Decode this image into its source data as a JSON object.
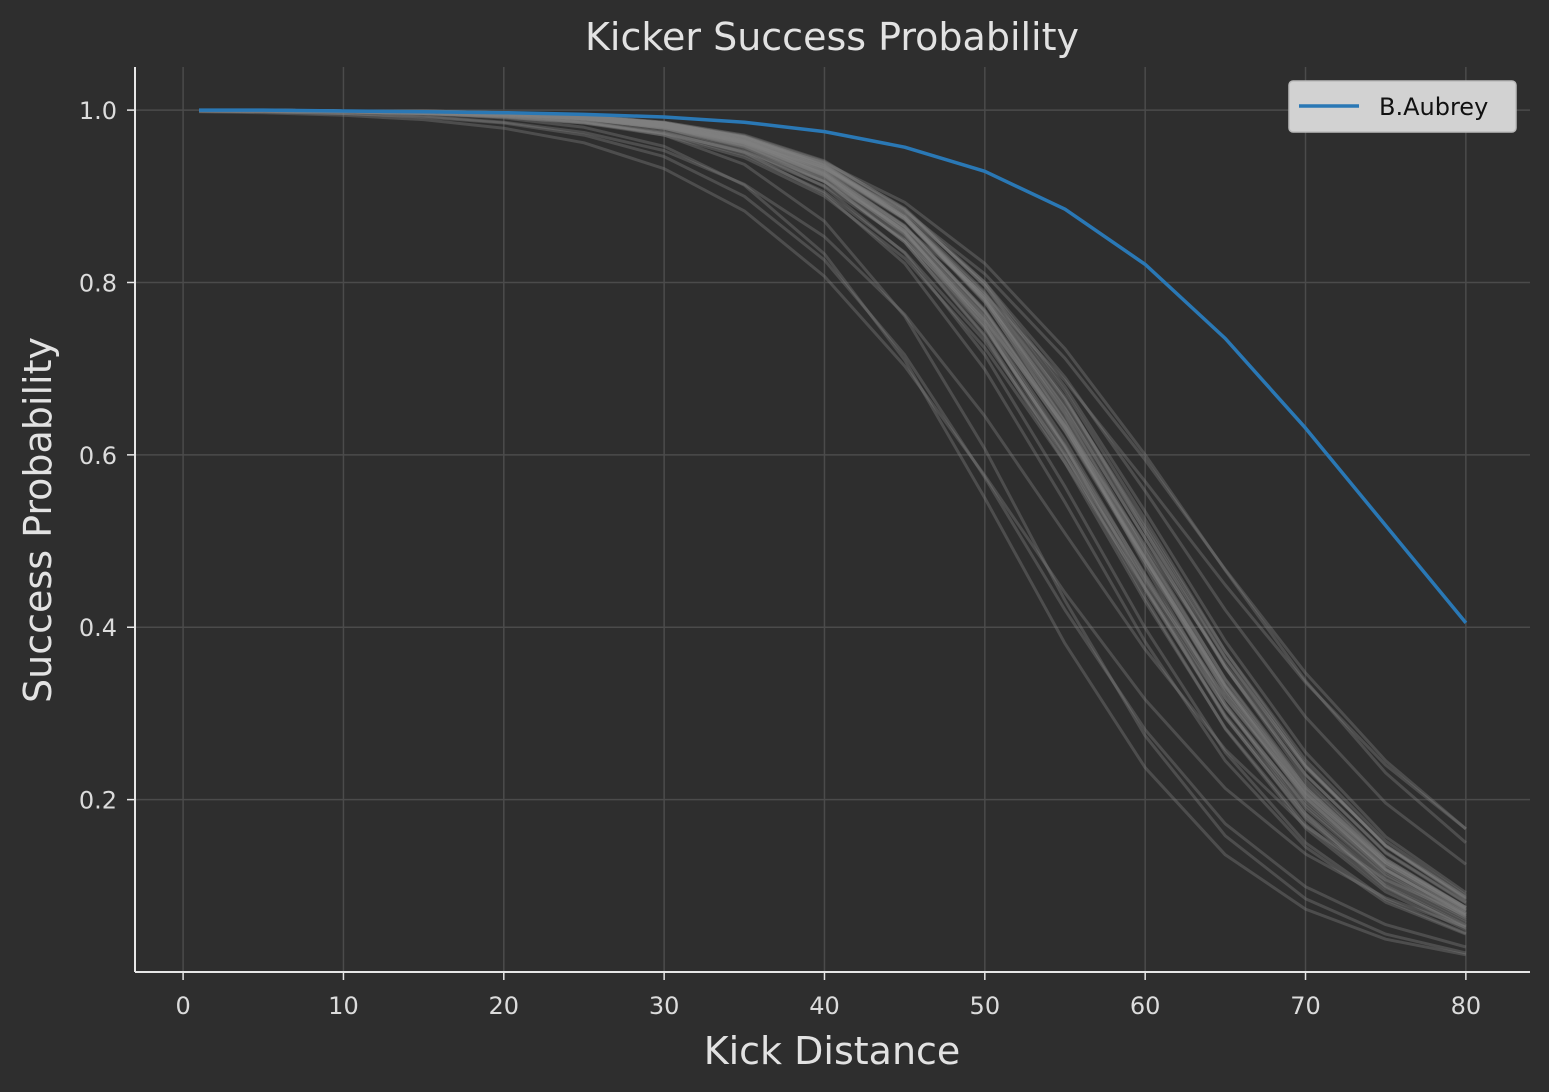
{
  "chart_data": {
    "type": "line",
    "title": "Kicker Success Probability",
    "xlabel": "Kick Distance",
    "ylabel": "Success Probability",
    "xlim": [
      -3,
      84
    ],
    "ylim": [
      0.0,
      1.05
    ],
    "xticks": [
      0,
      10,
      20,
      30,
      40,
      50,
      60,
      70,
      80
    ],
    "yticks": [
      0.2,
      0.4,
      0.6,
      0.8,
      1.0
    ],
    "xtick_labels": [
      "0",
      "10",
      "20",
      "30",
      "40",
      "50",
      "60",
      "70",
      "80"
    ],
    "ytick_labels": [
      "0.2",
      "0.4",
      "0.6",
      "0.8",
      "1.0"
    ],
    "grid": true,
    "legend_position": "top-right",
    "x": [
      1,
      5,
      10,
      15,
      20,
      25,
      30,
      35,
      40,
      45,
      50,
      55,
      60,
      65,
      70,
      75,
      80
    ],
    "highlight_series": {
      "name": "B.Aubrey",
      "color": "#2a78b5",
      "values": [
        1.0,
        1.0,
        0.999,
        0.998,
        0.997,
        0.995,
        0.992,
        0.986,
        0.975,
        0.957,
        0.929,
        0.885,
        0.821,
        0.735,
        0.631,
        0.518,
        0.405
      ]
    },
    "background_series_color": "#808080",
    "background_series": [
      {
        "values": [
          1.0,
          0.999,
          0.998,
          0.997,
          0.994,
          0.987,
          0.971,
          0.937,
          0.871,
          0.761,
          0.607,
          0.431,
          0.274,
          0.158,
          0.085,
          0.044,
          0.022
        ]
      },
      {
        "values": [
          1.0,
          0.999,
          0.998,
          0.996,
          0.991,
          0.98,
          0.958,
          0.913,
          0.833,
          0.71,
          0.55,
          0.381,
          0.237,
          0.136,
          0.073,
          0.038,
          0.02
        ]
      },
      {
        "values": [
          1.0,
          1.0,
          0.999,
          0.998,
          0.995,
          0.99,
          0.979,
          0.955,
          0.911,
          0.834,
          0.716,
          0.563,
          0.399,
          0.255,
          0.15,
          0.084,
          0.045
        ]
      },
      {
        "values": [
          1.0,
          1.0,
          0.999,
          0.998,
          0.996,
          0.992,
          0.983,
          0.963,
          0.925,
          0.859,
          0.754,
          0.61,
          0.448,
          0.296,
          0.178,
          0.1,
          0.054
        ]
      },
      {
        "values": [
          1.0,
          1.0,
          0.999,
          0.997,
          0.995,
          0.989,
          0.977,
          0.951,
          0.903,
          0.822,
          0.699,
          0.545,
          0.383,
          0.245,
          0.145,
          0.081,
          0.044
        ]
      },
      {
        "values": [
          1.0,
          1.0,
          0.999,
          0.998,
          0.996,
          0.991,
          0.981,
          0.959,
          0.918,
          0.847,
          0.737,
          0.591,
          0.43,
          0.283,
          0.171,
          0.097,
          0.053
        ]
      },
      {
        "values": [
          0.999,
          0.999,
          0.998,
          0.996,
          0.992,
          0.985,
          0.971,
          0.945,
          0.9,
          0.828,
          0.724,
          0.591,
          0.445,
          0.307,
          0.196,
          0.118,
          0.068
        ]
      },
      {
        "values": [
          0.999,
          0.999,
          0.998,
          0.996,
          0.993,
          0.986,
          0.974,
          0.951,
          0.912,
          0.849,
          0.756,
          0.634,
          0.495,
          0.357,
          0.237,
          0.147,
          0.087
        ]
      },
      {
        "values": [
          1.0,
          1.0,
          0.999,
          0.998,
          0.997,
          0.993,
          0.985,
          0.969,
          0.936,
          0.876,
          0.778,
          0.638,
          0.471,
          0.31,
          0.183,
          0.099,
          0.051
        ]
      },
      {
        "values": [
          1.0,
          1.0,
          0.999,
          0.999,
          0.997,
          0.993,
          0.984,
          0.965,
          0.927,
          0.859,
          0.75,
          0.601,
          0.434,
          0.282,
          0.167,
          0.093,
          0.049
        ]
      },
      {
        "values": [
          0.999,
          0.998,
          0.996,
          0.992,
          0.985,
          0.971,
          0.946,
          0.9,
          0.826,
          0.716,
          0.574,
          0.42,
          0.281,
          0.172,
          0.099,
          0.055,
          0.029
        ]
      },
      {
        "values": [
          0.999,
          0.998,
          0.996,
          0.993,
          0.986,
          0.974,
          0.953,
          0.914,
          0.853,
          0.763,
          0.645,
          0.509,
          0.374,
          0.258,
          0.169,
          0.107,
          0.066
        ]
      },
      {
        "values": [
          0.998,
          0.997,
          0.994,
          0.989,
          0.979,
          0.962,
          0.932,
          0.883,
          0.807,
          0.703,
          0.576,
          0.44,
          0.316,
          0.213,
          0.137,
          0.086,
          0.052
        ]
      },
      {
        "values": [
          1.0,
          0.999,
          0.999,
          0.997,
          0.995,
          0.99,
          0.981,
          0.964,
          0.933,
          0.881,
          0.8,
          0.69,
          0.558,
          0.42,
          0.296,
          0.196,
          0.125
        ]
      },
      {
        "values": [
          0.999,
          0.999,
          0.998,
          0.997,
          0.994,
          0.989,
          0.98,
          0.962,
          0.932,
          0.883,
          0.81,
          0.712,
          0.594,
          0.467,
          0.347,
          0.245,
          0.166
        ]
      },
      {
        "values": [
          0.999,
          0.999,
          0.998,
          0.996,
          0.992,
          0.985,
          0.973,
          0.952,
          0.917,
          0.863,
          0.786,
          0.686,
          0.569,
          0.449,
          0.336,
          0.24,
          0.166
        ]
      },
      {
        "values": [
          1.0,
          0.999,
          0.998,
          0.997,
          0.995,
          0.99,
          0.982,
          0.966,
          0.939,
          0.893,
          0.822,
          0.723,
          0.6,
          0.466,
          0.338,
          0.231,
          0.15
        ]
      },
      {
        "values": [
          1.0,
          1.0,
          0.999,
          0.998,
          0.996,
          0.992,
          0.983,
          0.966,
          0.933,
          0.874,
          0.78,
          0.648,
          0.492,
          0.339,
          0.214,
          0.127,
          0.072
        ]
      },
      {
        "values": [
          1.0,
          1.0,
          0.999,
          0.998,
          0.996,
          0.991,
          0.981,
          0.961,
          0.924,
          0.858,
          0.755,
          0.617,
          0.459,
          0.311,
          0.193,
          0.113,
          0.064
        ]
      },
      {
        "values": [
          1.0,
          1.0,
          0.999,
          0.998,
          0.996,
          0.993,
          0.985,
          0.969,
          0.938,
          0.884,
          0.797,
          0.674,
          0.525,
          0.372,
          0.241,
          0.146,
          0.084
        ]
      },
      {
        "values": [
          1.0,
          1.0,
          0.999,
          0.999,
          0.997,
          0.993,
          0.985,
          0.969,
          0.937,
          0.877,
          0.782,
          0.647,
          0.487,
          0.331,
          0.205,
          0.119,
          0.066
        ]
      },
      {
        "values": [
          1.0,
          0.999,
          0.999,
          0.998,
          0.996,
          0.992,
          0.983,
          0.965,
          0.931,
          0.873,
          0.78,
          0.653,
          0.503,
          0.354,
          0.229,
          0.139,
          0.081
        ]
      },
      {
        "values": [
          1.0,
          1.0,
          0.999,
          0.998,
          0.996,
          0.991,
          0.982,
          0.962,
          0.924,
          0.856,
          0.75,
          0.607,
          0.445,
          0.295,
          0.18,
          0.103,
          0.057
        ]
      },
      {
        "values": [
          1.0,
          1.0,
          0.999,
          0.999,
          0.997,
          0.994,
          0.986,
          0.971,
          0.941,
          0.885,
          0.796,
          0.667,
          0.511,
          0.354,
          0.223,
          0.131,
          0.074
        ]
      },
      {
        "values": [
          1.0,
          1.0,
          0.999,
          0.998,
          0.996,
          0.992,
          0.983,
          0.964,
          0.929,
          0.866,
          0.767,
          0.632,
          0.476,
          0.324,
          0.203,
          0.119,
          0.067
        ]
      },
      {
        "values": [
          1.0,
          1.0,
          0.999,
          0.998,
          0.996,
          0.991,
          0.982,
          0.962,
          0.925,
          0.86,
          0.76,
          0.627,
          0.475,
          0.328,
          0.208,
          0.124,
          0.071
        ]
      },
      {
        "values": [
          1.0,
          1.0,
          0.999,
          0.999,
          0.997,
          0.993,
          0.985,
          0.968,
          0.935,
          0.874,
          0.777,
          0.641,
          0.48,
          0.324,
          0.2,
          0.116,
          0.064
        ]
      },
      {
        "values": [
          1.0,
          1.0,
          0.999,
          0.998,
          0.996,
          0.991,
          0.982,
          0.962,
          0.926,
          0.862,
          0.764,
          0.632,
          0.481,
          0.333,
          0.212,
          0.127,
          0.073
        ]
      },
      {
        "values": [
          1.0,
          1.0,
          0.999,
          0.998,
          0.996,
          0.992,
          0.983,
          0.964,
          0.928,
          0.865,
          0.766,
          0.633,
          0.48,
          0.331,
          0.209,
          0.124,
          0.071
        ]
      },
      {
        "values": [
          1.0,
          1.0,
          0.999,
          0.998,
          0.995,
          0.99,
          0.979,
          0.958,
          0.917,
          0.847,
          0.739,
          0.597,
          0.442,
          0.298,
          0.184,
          0.107,
          0.06
        ]
      },
      {
        "values": [
          0.999,
          0.999,
          0.998,
          0.996,
          0.993,
          0.986,
          0.973,
          0.948,
          0.905,
          0.835,
          0.732,
          0.6,
          0.455,
          0.318,
          0.207,
          0.127,
          0.075
        ]
      },
      {
        "values": [
          1.0,
          1.0,
          0.999,
          0.998,
          0.996,
          0.992,
          0.983,
          0.965,
          0.933,
          0.876,
          0.787,
          0.664,
          0.519,
          0.372,
          0.246,
          0.152,
          0.089
        ]
      },
      {
        "values": [
          1.0,
          1.0,
          0.999,
          0.999,
          0.997,
          0.993,
          0.986,
          0.97,
          0.94,
          0.886,
          0.8,
          0.679,
          0.534,
          0.384,
          0.255,
          0.157,
          0.092
        ]
      },
      {
        "values": [
          1.0,
          1.0,
          0.999,
          0.998,
          0.997,
          0.993,
          0.985,
          0.968,
          0.935,
          0.876,
          0.783,
          0.654,
          0.503,
          0.353,
          0.229,
          0.138,
          0.08
        ]
      },
      {
        "values": [
          1.0,
          0.999,
          0.999,
          0.998,
          0.995,
          0.99,
          0.98,
          0.959,
          0.922,
          0.857,
          0.759,
          0.628,
          0.479,
          0.333,
          0.214,
          0.129,
          0.075
        ]
      },
      {
        "values": [
          1.0,
          1.0,
          0.999,
          0.998,
          0.996,
          0.992,
          0.983,
          0.965,
          0.932,
          0.874,
          0.783,
          0.658,
          0.511,
          0.364,
          0.239,
          0.147,
          0.086
        ]
      },
      {
        "values": [
          1.0,
          1.0,
          0.999,
          0.998,
          0.996,
          0.991,
          0.981,
          0.96,
          0.921,
          0.853,
          0.748,
          0.609,
          0.454,
          0.307,
          0.19,
          0.111,
          0.062
        ]
      },
      {
        "values": [
          1.0,
          1.0,
          0.999,
          0.998,
          0.997,
          0.993,
          0.985,
          0.968,
          0.936,
          0.879,
          0.789,
          0.664,
          0.516,
          0.365,
          0.239,
          0.146,
          0.085
        ]
      },
      {
        "values": [
          1.0,
          0.999,
          0.999,
          0.998,
          0.995,
          0.99,
          0.979,
          0.957,
          0.917,
          0.849,
          0.746,
          0.611,
          0.461,
          0.318,
          0.202,
          0.12,
          0.068
        ]
      },
      {
        "values": [
          1.0,
          1.0,
          0.999,
          0.998,
          0.996,
          0.992,
          0.982,
          0.963,
          0.928,
          0.865,
          0.768,
          0.638,
          0.488,
          0.34,
          0.218,
          0.131,
          0.075
        ]
      }
    ]
  }
}
